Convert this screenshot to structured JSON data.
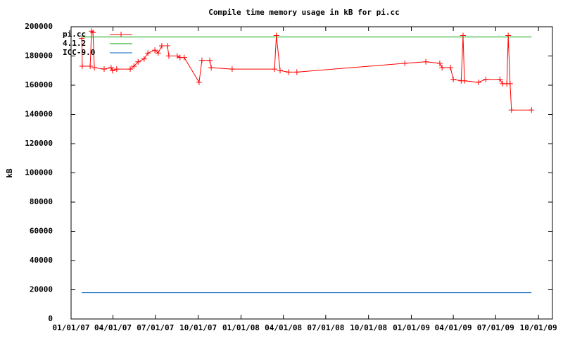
{
  "chart_data": {
    "type": "line",
    "title": "Compile time memory usage in kB for pi.cc",
    "y_label": "kB",
    "xlim": [
      "01/01/07",
      "10/31/09"
    ],
    "xticks": [
      "01/01/07",
      "04/01/07",
      "07/01/07",
      "10/01/07",
      "01/01/08",
      "04/01/08",
      "07/01/08",
      "10/01/08",
      "01/01/09",
      "04/01/09",
      "07/01/09",
      "10/01/09"
    ],
    "ylim": [
      0,
      200000
    ],
    "yticks": [
      0,
      20000,
      40000,
      60000,
      80000,
      100000,
      120000,
      140000,
      160000,
      180000,
      200000
    ],
    "legend": "top-left",
    "series": [
      {
        "name": "pi.cc",
        "color": "#ff0000",
        "markers": true,
        "x": [
          "01/24/07",
          "01/25/07",
          "02/11/07",
          "02/14/07",
          "02/17/07",
          "02/20/07",
          "03/13/07",
          "03/28/07",
          "03/31/07",
          "04/09/07",
          "05/08/07",
          "05/16/07",
          "05/25/07",
          "06/07/07",
          "06/15/07",
          "06/30/07",
          "07/07/07",
          "07/15/07",
          "07/27/07",
          "07/30/07",
          "08/17/07",
          "08/23/07",
          "09/01/07",
          "10/03/07",
          "10/09/07",
          "10/26/07",
          "10/29/07",
          "12/13/07",
          "03/13/08",
          "03/17/08",
          "03/25/08",
          "04/12/08",
          "04/30/08",
          "12/18/08",
          "02/01/09",
          "03/03/09",
          "03/08/09",
          "03/26/09",
          "04/01/09",
          "04/18/09",
          "04/22/09",
          "04/25/09",
          "05/25/09",
          "06/10/09",
          "07/10/09",
          "07/16/09",
          "07/25/09",
          "07/28/09",
          "08/01/09",
          "08/04/09",
          "09/16/09"
        ],
        "values": [
          192000,
          173000,
          173000,
          197000,
          196000,
          172000,
          171000,
          172000,
          170000,
          171000,
          171000,
          173000,
          176000,
          178000,
          182000,
          184000,
          182000,
          187000,
          187000,
          180000,
          180000,
          179000,
          179000,
          162000,
          177000,
          177000,
          172000,
          171000,
          171000,
          194000,
          170000,
          169000,
          169000,
          175000,
          176000,
          175000,
          172000,
          172000,
          164000,
          163000,
          194000,
          163000,
          162000,
          164000,
          164000,
          161000,
          161000,
          194000,
          161000,
          143000,
          143000
        ]
      },
      {
        "name": "4.1.2",
        "color": "#00a000",
        "markers": false,
        "x": [
          "01/24/07",
          "09/16/09"
        ],
        "values": [
          193000,
          193000
        ]
      },
      {
        "name": "ICC-9.0",
        "color": "#0060c0",
        "markers": false,
        "x": [
          "01/24/07",
          "09/16/09"
        ],
        "values": [
          18000,
          18000
        ]
      }
    ]
  }
}
